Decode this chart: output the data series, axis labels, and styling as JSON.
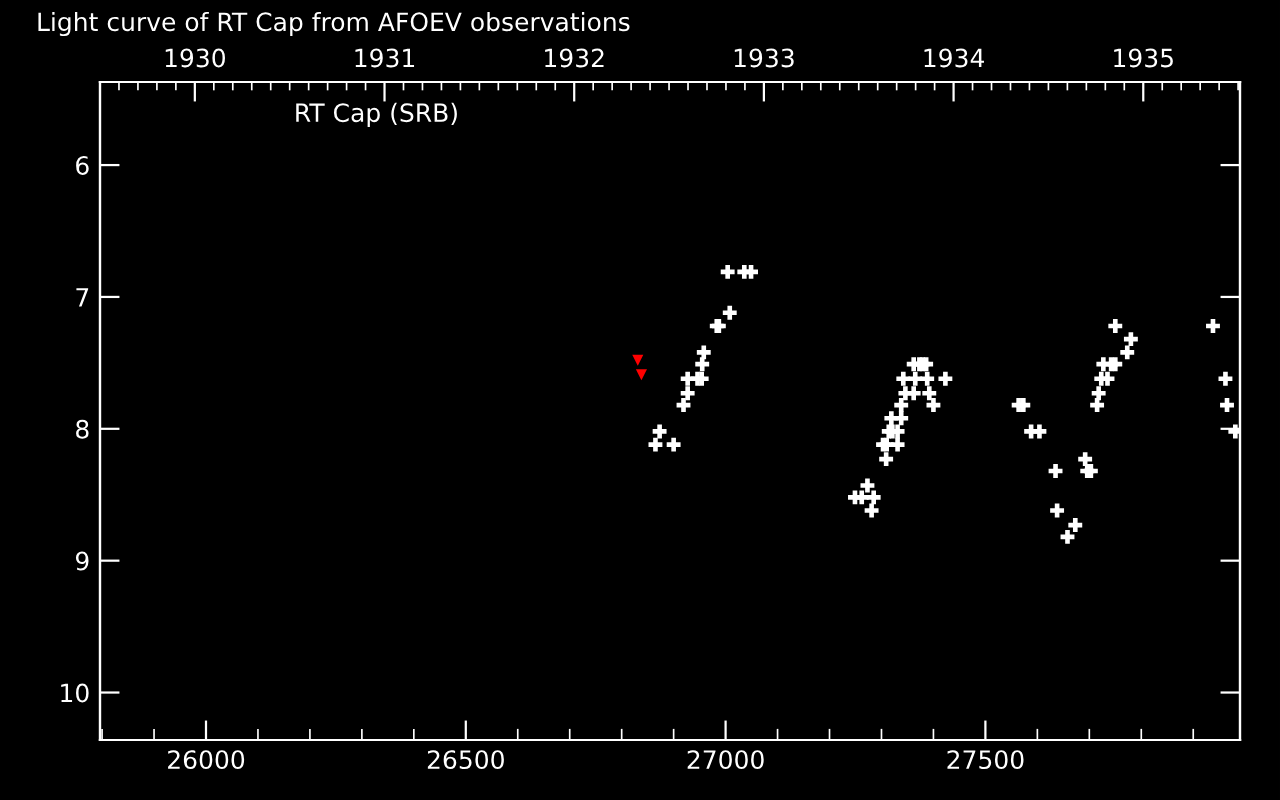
{
  "chart_data": {
    "type": "scatter",
    "title": "Light curve of RT Cap from AFOEV observations",
    "annotations": [
      "RT Cap (SRB)"
    ],
    "xlim": [
      25796,
      27990
    ],
    "xticks": [
      26000,
      26500,
      27000,
      27500
    ],
    "x2lim": [
      1929.5,
      1935.51
    ],
    "x2ticks": [
      1930,
      1931,
      1932,
      1933,
      1934,
      1935
    ],
    "ylim": [
      10.36,
      5.37
    ],
    "yticks": [
      6,
      7,
      8,
      9,
      10
    ],
    "grid": false,
    "legend": false,
    "series": [
      {
        "color": "#ffffff",
        "marker": "cross",
        "x": [
          26865,
          26873,
          26900,
          26919,
          26927,
          26927,
          26946,
          26954,
          26955,
          26958,
          26983,
          26987,
          27004,
          27008,
          27036,
          27049,
          27249,
          27262,
          27273,
          27281,
          27285,
          27303,
          27309,
          27310,
          27314,
          27319,
          27321,
          27331,
          27331,
          27338,
          27338,
          27342,
          27346,
          27362,
          27362,
          27365,
          27373,
          27379,
          27386,
          27388,
          27392,
          27400,
          27423,
          27564,
          27573,
          27588,
          27604,
          27635,
          27638,
          27658,
          27673,
          27692,
          27696,
          27703,
          27715,
          27718,
          27723,
          27727,
          27735,
          27742,
          27750,
          27750,
          27773,
          27780,
          27938,
          27962,
          27965,
          27981
        ],
        "values": [
          8.12,
          8.02,
          8.12,
          7.82,
          7.73,
          7.62,
          7.62,
          7.62,
          7.51,
          7.42,
          7.22,
          7.22,
          6.81,
          7.12,
          6.81,
          6.81,
          8.52,
          8.52,
          8.43,
          8.62,
          8.52,
          8.12,
          8.23,
          8.12,
          8.02,
          7.92,
          8.02,
          8.02,
          8.12,
          7.82,
          7.92,
          7.62,
          7.73,
          7.51,
          7.73,
          7.62,
          7.51,
          7.51,
          7.51,
          7.62,
          7.73,
          7.82,
          7.62,
          7.82,
          7.82,
          8.02,
          8.02,
          8.32,
          8.62,
          8.82,
          8.73,
          8.23,
          8.32,
          8.32,
          7.82,
          7.73,
          7.62,
          7.51,
          7.62,
          7.51,
          7.51,
          7.22,
          7.42,
          7.32,
          7.22,
          7.62,
          7.82,
          8.02
        ]
      },
      {
        "color": "#ff0000",
        "marker": "triangle",
        "x": [
          26831,
          26838
        ],
        "values": [
          7.48,
          7.59
        ]
      }
    ]
  }
}
